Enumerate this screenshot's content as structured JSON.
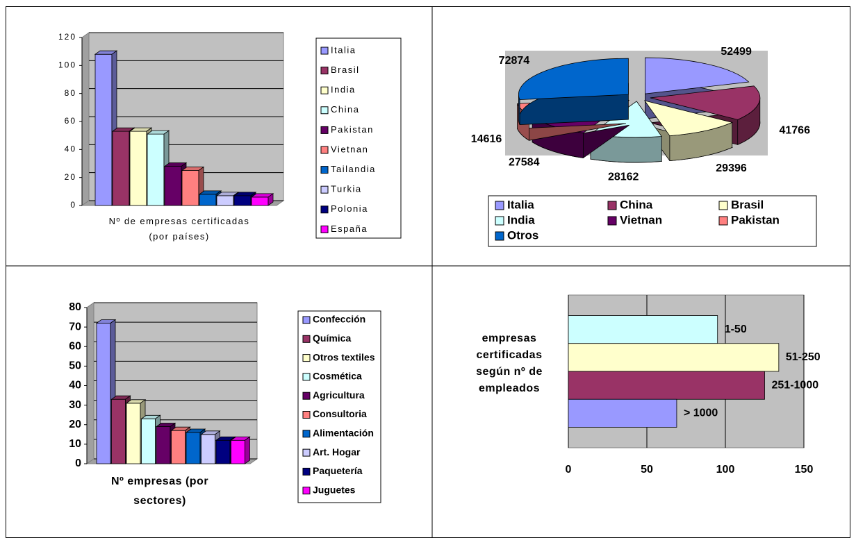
{
  "chart_data": [
    {
      "type": "bar",
      "xlabel": "Nº de empresas certificadas (por países)",
      "categories": [
        "Italia",
        "Brasil",
        "India",
        "China",
        "Pakistan",
        "Vietnan",
        "Tailandia",
        "Turkia",
        "Polonia",
        "España"
      ],
      "values": [
        108,
        53,
        53,
        51,
        28,
        25,
        8,
        7,
        7,
        6
      ],
      "colors": [
        "#9999ff",
        "#993366",
        "#ffffcc",
        "#ccffff",
        "#660066",
        "#ff8080",
        "#0066cc",
        "#ccccff",
        "#000080",
        "#ff00ff"
      ],
      "ylim": [
        0,
        120
      ],
      "yticks": [
        0,
        20,
        40,
        60,
        80,
        100,
        120
      ],
      "grid": true,
      "legend": "right"
    },
    {
      "type": "pie",
      "categories": [
        "Italia",
        "China",
        "Brasil",
        "India",
        "Vietnan",
        "Pakistan",
        "Otros"
      ],
      "values": [
        52499,
        41766,
        29396,
        28162,
        27584,
        14616,
        72874
      ],
      "colors": [
        "#9999ff",
        "#993366",
        "#ffffcc",
        "#ccffff",
        "#660066",
        "#ff8080",
        "#0066cc"
      ],
      "legend": "bottom"
    },
    {
      "type": "bar",
      "xlabel": "Nº empresas (por sectores)",
      "categories": [
        "Confección",
        "Química",
        "Otros textiles",
        "Cosmética",
        "Agricultura",
        "Consultoria",
        "Alimentación",
        "Art. Hogar",
        "Paquetería",
        "Juguetes"
      ],
      "values": [
        72,
        33,
        31,
        23,
        19,
        17,
        16,
        15,
        12,
        12
      ],
      "colors": [
        "#9999ff",
        "#993366",
        "#ffffcc",
        "#ccffff",
        "#660066",
        "#ff8080",
        "#0066cc",
        "#ccccff",
        "#000080",
        "#ff00ff"
      ],
      "ylim": [
        0,
        80
      ],
      "yticks": [
        0,
        10,
        20,
        30,
        40,
        50,
        60,
        70,
        80
      ],
      "grid": true,
      "legend": "right"
    },
    {
      "type": "hbar",
      "ylabel": "empresas certificadas según nº de empleados",
      "categories": [
        "1-50",
        "51-250",
        "251-1000",
        "> 1000"
      ],
      "values": [
        95,
        134,
        125,
        69
      ],
      "colors": [
        "#ccffff",
        "#ffffcc",
        "#993366",
        "#9999ff"
      ],
      "xlim": [
        0,
        150
      ],
      "xticks": [
        0,
        50,
        100,
        150
      ],
      "grid": true
    }
  ]
}
